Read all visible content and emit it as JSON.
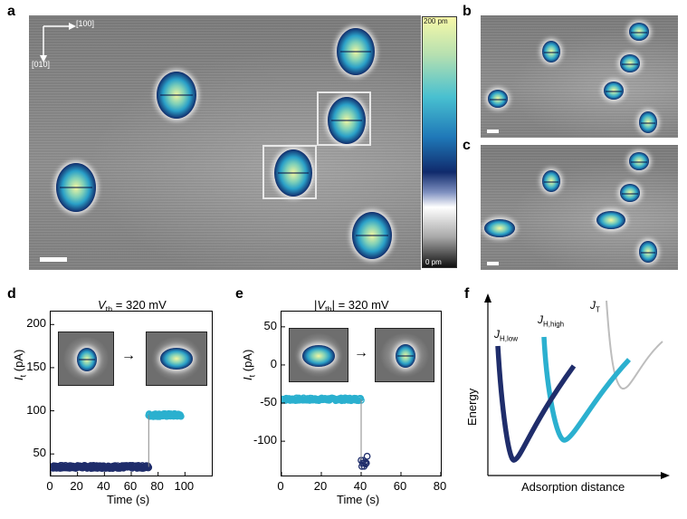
{
  "panels": {
    "a": {
      "label": "a",
      "dir_x": "[100]",
      "dir_y": "[010]"
    },
    "b": {
      "label": "b"
    },
    "c": {
      "label": "c"
    },
    "d": {
      "label": "d",
      "title": "V",
      "title_sub": "th",
      "title_rest": " = 320 mV"
    },
    "e": {
      "label": "e",
      "title_pre": "|V",
      "title_sub": "th",
      "title_rest": "| = 320 mV"
    },
    "f": {
      "label": "f"
    }
  },
  "colorbar": {
    "top_label": "200 pm",
    "bottom_label": "0 pm"
  },
  "colors": {
    "dark_series": "#1f2d6b",
    "light_series": "#2bb0cf",
    "gray_series": "#bdbdbd"
  },
  "chart_data": [
    {
      "type": "scatter",
      "panel": "d",
      "xlabel": "Time (s)",
      "ylabel": "It (pA)",
      "xlim": [
        0,
        120
      ],
      "ylim": [
        25,
        215
      ],
      "xticks": [
        0,
        20,
        40,
        60,
        80,
        100
      ],
      "yticks": [
        50,
        100,
        150,
        200
      ],
      "series": [
        {
          "color": "#1f2d6b",
          "x_range": [
            0,
            73
          ],
          "y_level": 35
        },
        {
          "color": "#2bb0cf",
          "x_range": [
            73,
            97
          ],
          "y_level": 95
        }
      ]
    },
    {
      "type": "scatter",
      "panel": "e",
      "xlabel": "Time (s)",
      "ylabel": "It (pA)",
      "xlim": [
        0,
        80
      ],
      "ylim": [
        -145,
        70
      ],
      "xticks": [
        0,
        20,
        40,
        60,
        80
      ],
      "yticks": [
        50,
        0,
        -50,
        -100
      ],
      "series": [
        {
          "color": "#2bb0cf",
          "x_range": [
            0,
            40
          ],
          "y_level": -45
        },
        {
          "color": "#1f2d6b",
          "x_range": [
            40,
            43
          ],
          "y_level": -125
        }
      ]
    },
    {
      "type": "line",
      "panel": "f",
      "xlabel": "Adsorption distance",
      "ylabel": "Energy",
      "series": [
        {
          "name": "J_H,low",
          "label_main": "J",
          "label_sub": "H,low",
          "color": "#1f2d6b"
        },
        {
          "name": "J_H,high",
          "label_main": "J",
          "label_sub": "H,high",
          "color": "#2bb0cf"
        },
        {
          "name": "J_T",
          "label_main": "J",
          "label_sub": "T",
          "color": "#bdbdbd"
        }
      ]
    }
  ]
}
